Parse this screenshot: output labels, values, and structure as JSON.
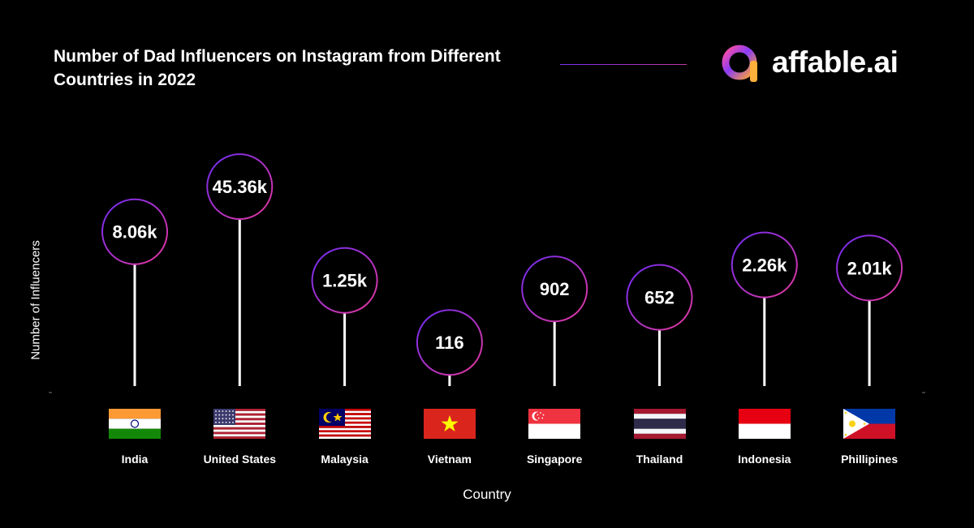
{
  "header": {
    "title": "Number of Dad Influencers on Instagram from Different Countries in 2022",
    "brand": "affable.ai",
    "logo_icon": "affable-logo-icon"
  },
  "colors": {
    "background": "#000000",
    "circle_gradient_start": "#7b2ff7",
    "circle_gradient_end": "#e0359a",
    "stem": "#ffffff"
  },
  "chart_data": {
    "type": "lollipop",
    "title": "Number of Dad Influencers on Instagram from Different Countries in 2022",
    "xlabel": "Country",
    "ylabel": "Number of Influencers",
    "categories": [
      "India",
      "United States",
      "Malaysia",
      "Vietnam",
      "Singapore",
      "Thailand",
      "Indonesia",
      "Phillipines"
    ],
    "values": [
      8060,
      45360,
      1250,
      116,
      902,
      652,
      2260,
      2010
    ],
    "labels": [
      "8.06k",
      "45.36k",
      "1.25k",
      "116",
      "902",
      "652",
      "2.26k",
      "2.01k"
    ],
    "flag_icons": [
      "india-flag-icon",
      "us-flag-icon",
      "malaysia-flag-icon",
      "vietnam-flag-icon",
      "singapore-flag-icon",
      "thailand-flag-icon",
      "indonesia-flag-icon",
      "philippines-flag-icon"
    ],
    "grid": false,
    "legend": "none"
  }
}
